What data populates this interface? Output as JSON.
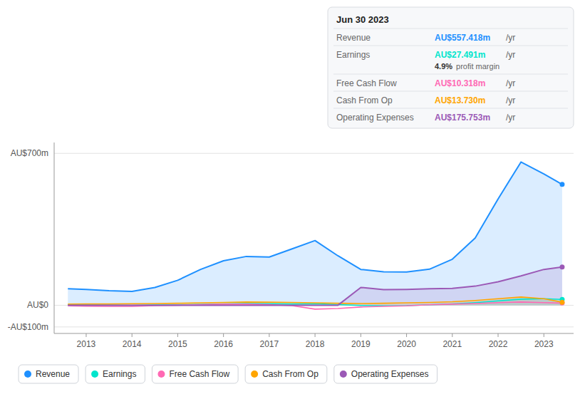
{
  "chart_data": {
    "type": "area",
    "x": [
      2012.6,
      2013.0,
      2013.5,
      2014.0,
      2014.5,
      2015.0,
      2015.5,
      2016.0,
      2016.5,
      2017.0,
      2017.5,
      2018.0,
      2018.5,
      2019.0,
      2019.5,
      2020.0,
      2020.5,
      2021.0,
      2021.5,
      2022.0,
      2022.5,
      2023.0,
      2023.4
    ],
    "xlim": [
      2012.3,
      2023.65
    ],
    "xticks": [
      2013,
      2014,
      2015,
      2016,
      2017,
      2018,
      2019,
      2020,
      2021,
      2022,
      2023
    ],
    "ylim": [
      -130,
      750
    ],
    "yticks": [
      {
        "value": -100,
        "label": "-AU$100m"
      },
      {
        "value": 0,
        "label": "AU$0"
      },
      {
        "value": 700,
        "label": "AU$700m"
      }
    ],
    "grid": true,
    "legend": "bottom",
    "series": [
      {
        "name": "Revenue",
        "color": "#1e90ff",
        "values": [
          76,
          73,
          67,
          64,
          82,
          115,
          165,
          205,
          225,
          222,
          260,
          298,
          228,
          165,
          154,
          153,
          166,
          212,
          310,
          490,
          660,
          605,
          557
        ]
      },
      {
        "name": "Earnings",
        "color": "#00e5cc",
        "values": [
          2,
          1,
          0,
          -1,
          1,
          2,
          4,
          6,
          8,
          7,
          6,
          7,
          3,
          -1,
          -3,
          -2,
          2,
          6,
          12,
          20,
          28,
          30,
          27
        ]
      },
      {
        "name": "Free Cash Flow",
        "color": "#ff69b4",
        "type": "line",
        "values": [
          -3,
          -4,
          -5,
          -5,
          -2,
          0,
          3,
          5,
          5,
          3,
          -2,
          -18,
          -15,
          -8,
          -5,
          -3,
          2,
          5,
          8,
          12,
          15,
          12,
          10
        ]
      },
      {
        "name": "Cash From Op",
        "color": "#ffa500",
        "values": [
          5,
          6,
          6,
          7,
          8,
          9,
          11,
          13,
          15,
          14,
          13,
          11,
          9,
          8,
          9,
          11,
          13,
          16,
          22,
          30,
          38,
          30,
          14
        ]
      },
      {
        "name": "Operating Expenses",
        "color": "#9b59b6",
        "values": [
          0,
          0,
          0,
          0,
          0,
          0,
          0,
          0,
          0,
          0,
          0,
          0,
          0,
          82,
          72,
          73,
          76,
          78,
          88,
          108,
          135,
          165,
          176
        ]
      }
    ],
    "annotations": {
      "header": "Jun 30 2023",
      "rows": [
        {
          "label": "Revenue",
          "value": "AU$557.418m",
          "unit": "/yr"
        },
        {
          "label": "Earnings",
          "value": "AU$27.491m",
          "unit": "/yr",
          "note_value": "4.9%",
          "note": "profit margin"
        },
        {
          "label": "Free Cash Flow",
          "value": "AU$10.318m",
          "unit": "/yr"
        },
        {
          "label": "Cash From Op",
          "value": "AU$13.730m",
          "unit": "/yr"
        },
        {
          "label": "Operating Expenses",
          "value": "AU$175.753m",
          "unit": "/yr"
        }
      ]
    }
  }
}
